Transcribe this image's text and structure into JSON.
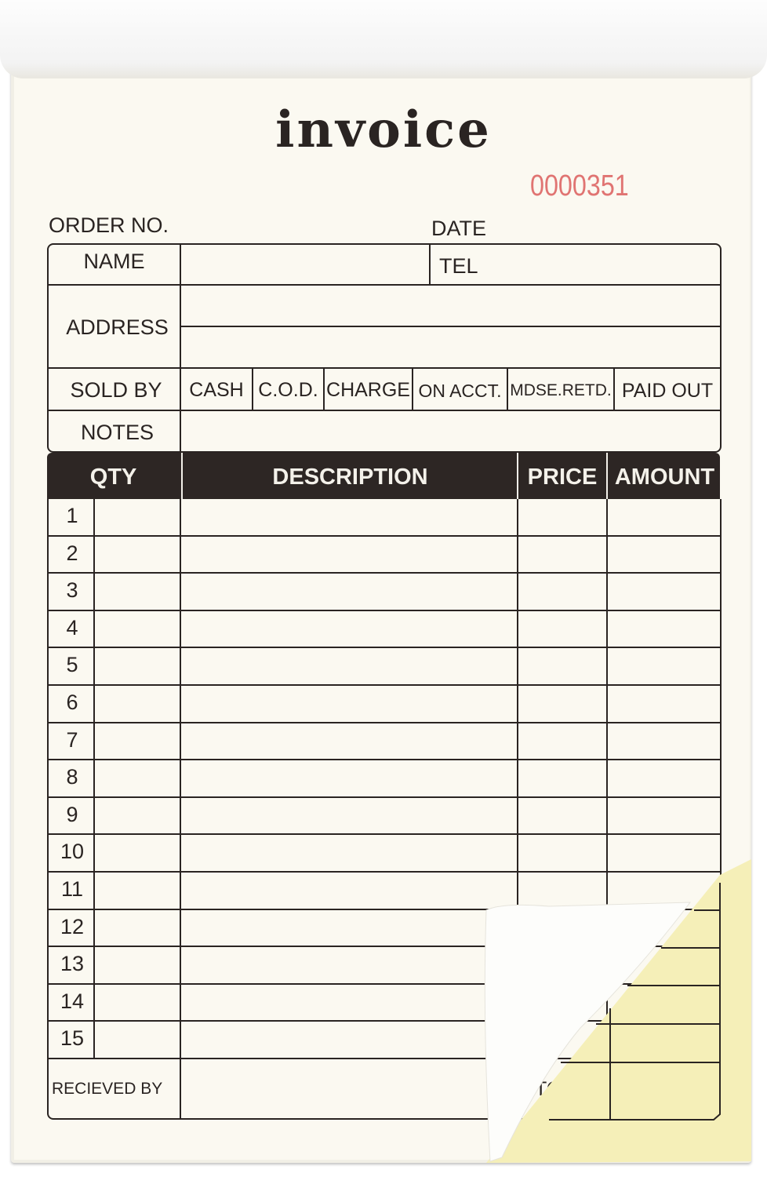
{
  "title": "invoice",
  "serial_number": "0000351",
  "header": {
    "order_no": "ORDER NO.",
    "date": "DATE"
  },
  "fields": {
    "name": "NAME",
    "tel": "TEL",
    "address": "ADDRESS",
    "sold_by": "SOLD BY",
    "notes": "NOTES"
  },
  "payment_options": [
    "CASH",
    "C.O.D.",
    "CHARGE",
    "ON ACCT.",
    "MDSE.RETD.",
    "PAID OUT"
  ],
  "table": {
    "columns": [
      "QTY",
      "DESCRIPTION",
      "PRICE",
      "AMOUNT"
    ],
    "rows": [
      "1",
      "2",
      "3",
      "4",
      "5",
      "6",
      "7",
      "8",
      "9",
      "10",
      "11",
      "12",
      "13",
      "14",
      "15"
    ]
  },
  "footer": {
    "received_by": "RECIEVED BY",
    "total": "TOTAL"
  },
  "colors": {
    "ink": "#2a2422",
    "serial": "#e07472",
    "paper": "#fbf9f1",
    "carbon_copy": "#f5efb8"
  }
}
